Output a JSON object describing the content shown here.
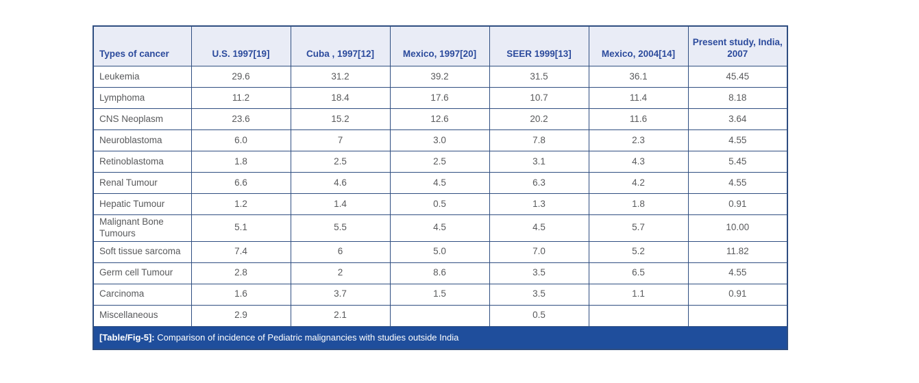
{
  "colors": {
    "border": "#2e4d80",
    "header_bg": "#e9ecf6",
    "header_text": "#2b4a9c",
    "body_text": "#58595b",
    "caption_bg": "#1f4e9c",
    "caption_text": "#ffffff"
  },
  "table": {
    "columns": [
      "Types of cancer",
      "U.S. 1997[19]",
      "Cuba , 1997[12]",
      "Mexico, 1997[20]",
      "SEER 1999[13]",
      "Mexico, 2004[14]",
      "Present study, India, 2007"
    ],
    "rows": [
      {
        "label": "Leukemia",
        "values": [
          "29.6",
          "31.2",
          "39.2",
          "31.5",
          "36.1",
          "45.45"
        ]
      },
      {
        "label": "Lymphoma",
        "values": [
          "11.2",
          "18.4",
          "17.6",
          "10.7",
          "11.4",
          "8.18"
        ]
      },
      {
        "label": "CNS Neoplasm",
        "values": [
          "23.6",
          "15.2",
          "12.6",
          "20.2",
          "11.6",
          "3.64"
        ]
      },
      {
        "label": "Neuroblastoma",
        "values": [
          "6.0",
          "7",
          "3.0",
          "7.8",
          "2.3",
          "4.55"
        ]
      },
      {
        "label": "Retinoblastoma",
        "values": [
          "1.8",
          "2.5",
          "2.5",
          "3.1",
          "4.3",
          "5.45"
        ]
      },
      {
        "label": "Renal Tumour",
        "values": [
          "6.6",
          "4.6",
          "4.5",
          "6.3",
          "4.2",
          "4.55"
        ]
      },
      {
        "label": "Hepatic Tumour",
        "values": [
          "1.2",
          "1.4",
          "0.5",
          "1.3",
          "1.8",
          "0.91"
        ]
      },
      {
        "label": "Malignant Bone Tumours",
        "values": [
          "5.1",
          "5.5",
          "4.5",
          "4.5",
          "5.7",
          "10.00"
        ]
      },
      {
        "label": "Soft tissue sarcoma",
        "values": [
          "7.4",
          "6",
          "5.0",
          "7.0",
          "5.2",
          "11.82"
        ]
      },
      {
        "label": "Germ cell Tumour",
        "values": [
          "2.8",
          "2",
          "8.6",
          "3.5",
          "6.5",
          "4.55"
        ]
      },
      {
        "label": "Carcinoma",
        "values": [
          "1.6",
          "3.7",
          "1.5",
          "3.5",
          "1.1",
          "0.91"
        ]
      },
      {
        "label": "Miscellaneous",
        "values": [
          "2.9",
          "2.1",
          "",
          "0.5",
          "",
          ""
        ]
      }
    ],
    "caption": {
      "label": "[Table/Fig-5]:",
      "text": "Comparison of incidence of Pediatric malignancies with studies outside India"
    }
  }
}
